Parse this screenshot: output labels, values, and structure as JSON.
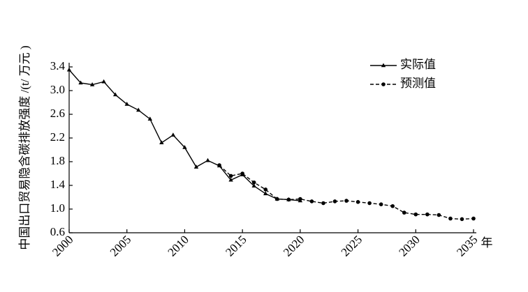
{
  "chart_data": {
    "type": "line",
    "y_label": "中国出口贸易隐含碳排放强度 /(t/ 万元 )",
    "x_label": "年",
    "xlim": [
      2000,
      2035
    ],
    "xticks": [
      2000,
      2005,
      2010,
      2015,
      2020,
      2025,
      2030,
      2035
    ],
    "ylim": [
      0.6,
      3.4
    ],
    "yticks": [
      0.6,
      {
        "value": 1,
        "label": "1.0"
      },
      1.4,
      1.8,
      2.2,
      2.6,
      {
        "value": 3,
        "label": "3.0"
      },
      3.4
    ],
    "legend": "upper right",
    "series": [
      {
        "name": "实际值",
        "color": "#000000",
        "dash": "solid",
        "marker": "triangle",
        "x": [
          2000,
          2001,
          2002,
          2003,
          2004,
          2005,
          2006,
          2007,
          2008,
          2009,
          2010,
          2011,
          2012,
          2013,
          2014,
          2015,
          2016,
          2017,
          2018,
          2019,
          2020
        ],
        "values": [
          3.35,
          3.13,
          3.1,
          3.15,
          2.93,
          2.77,
          2.67,
          2.52,
          2.12,
          2.25,
          2.04,
          1.71,
          1.82,
          1.73,
          1.49,
          1.58,
          1.39,
          1.26,
          1.17,
          1.16,
          1.14
        ]
      },
      {
        "name": "预测值",
        "color": "#000000",
        "dash": "dashed",
        "marker": "circle",
        "x": [
          2013,
          2014,
          2015,
          2016,
          2017,
          2018,
          2019,
          2020,
          2021,
          2022,
          2023,
          2024,
          2025,
          2026,
          2027,
          2028,
          2029,
          2030,
          2031,
          2032,
          2033,
          2034,
          2035
        ],
        "values": [
          1.74,
          1.56,
          1.6,
          1.45,
          1.33,
          1.17,
          1.16,
          1.17,
          1.13,
          1.1,
          1.13,
          1.14,
          1.12,
          1.1,
          1.08,
          1.05,
          0.94,
          0.91,
          0.91,
          0.9,
          0.84,
          0.83,
          0.84
        ]
      }
    ]
  }
}
